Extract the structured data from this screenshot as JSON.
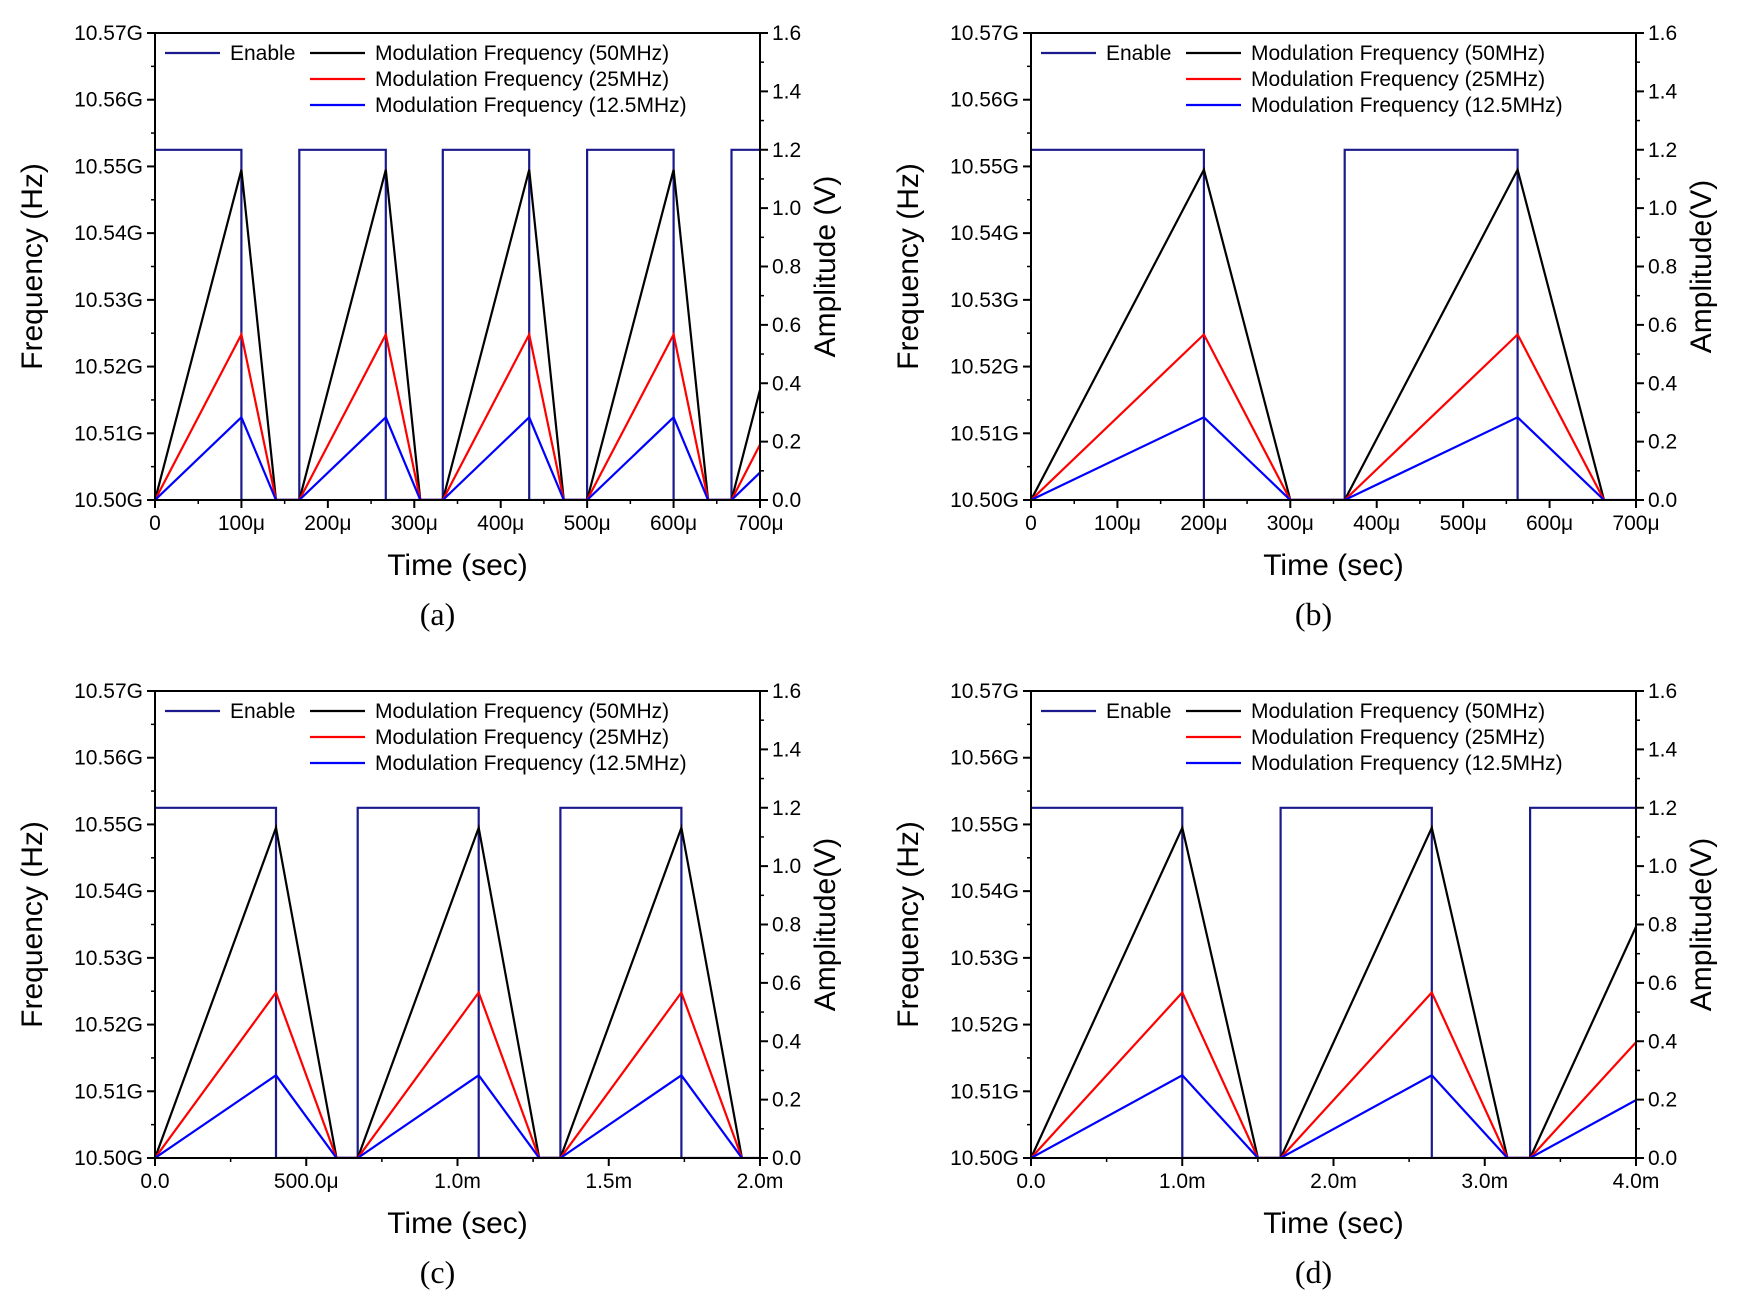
{
  "colors": {
    "enable": "#1a1a8c",
    "f50": "#000000",
    "f25": "#ff0000",
    "f12": "#0000ff"
  },
  "chart_data": [
    {
      "type": "line",
      "caption": "(a)",
      "xlabel": "Time (sec)",
      "ylabel_left": "Frequency (Hz)",
      "ylabel_right": "Amplitude (V)",
      "xlim": [
        0,
        0.0007
      ],
      "xticks": [
        0,
        0.0001,
        0.0002,
        0.0003,
        0.0004,
        0.0005,
        0.0006,
        0.0007
      ],
      "xtick_labels": [
        "0",
        "100μ",
        "200μ",
        "300μ",
        "400μ",
        "500μ",
        "600μ",
        "700μ"
      ],
      "ylim_left": [
        10500000000,
        10570000000
      ],
      "yticks_left_labels": [
        "10.50G",
        "10.51G",
        "10.52G",
        "10.53G",
        "10.54G",
        "10.55G",
        "10.56G",
        "10.57G"
      ],
      "ylim_right": [
        0,
        1.6
      ],
      "yticks_right_labels": [
        "0.0",
        "0.2",
        "0.4",
        "0.6",
        "0.8",
        "1.0",
        "1.2",
        "1.4",
        "1.6"
      ],
      "legend": {
        "enable": "Enable",
        "f50": "Modulation Frequency (50MHz)",
        "f25": "Modulation Frequency (25MHz)",
        "f12": "Modulation Frequency (12.5MHz)"
      },
      "series": [
        {
          "name": "Enable",
          "color_key": "enable",
          "axis": "right",
          "x": [
            0,
            0.0001,
            0.0001,
            0.000167,
            0.000167,
            0.000267,
            0.000267,
            0.000333,
            0.000333,
            0.000433,
            0.000433,
            0.0005,
            0.0005,
            0.0006,
            0.0006,
            0.000667,
            0.000667,
            0.0007
          ],
          "y": [
            1.2,
            1.2,
            0,
            0,
            1.2,
            1.2,
            0,
            0,
            1.2,
            1.2,
            0,
            0,
            1.2,
            1.2,
            0,
            0,
            1.2,
            1.2
          ]
        },
        {
          "name": "Modulation Frequency (50MHz)",
          "color_key": "f50",
          "axis": "left",
          "x": [
            0,
            0.0001,
            0.00014,
            0.000167,
            0.000267,
            0.000307,
            0.000333,
            0.000433,
            0.000473,
            0.0005,
            0.0006,
            0.00064,
            0.000667,
            0.0007
          ],
          "y": [
            10500000000,
            10549500000,
            10500000000,
            10500000000,
            10549500000,
            10500000000,
            10500000000,
            10549500000,
            10500000000,
            10500000000,
            10549500000,
            10500000000,
            10500000000,
            10516500000
          ]
        },
        {
          "name": "Modulation Frequency (25MHz)",
          "color_key": "f25",
          "axis": "left",
          "x": [
            0,
            0.0001,
            0.00014,
            0.000167,
            0.000267,
            0.000307,
            0.000333,
            0.000433,
            0.000473,
            0.0005,
            0.0006,
            0.00064,
            0.000667,
            0.0007
          ],
          "y": [
            10500000000,
            10524800000,
            10500000000,
            10500000000,
            10524800000,
            10500000000,
            10500000000,
            10524800000,
            10500000000,
            10500000000,
            10524800000,
            10500000000,
            10500000000,
            10508300000
          ]
        },
        {
          "name": "Modulation Frequency (12.5MHz)",
          "color_key": "f12",
          "axis": "left",
          "x": [
            0,
            0.0001,
            0.00014,
            0.000167,
            0.000267,
            0.000307,
            0.000333,
            0.000433,
            0.000473,
            0.0005,
            0.0006,
            0.00064,
            0.000667,
            0.0007
          ],
          "y": [
            10500000000,
            10512400000,
            10500000000,
            10500000000,
            10512400000,
            10500000000,
            10500000000,
            10512400000,
            10500000000,
            10500000000,
            10512400000,
            10500000000,
            10500000000,
            10504100000
          ]
        }
      ]
    },
    {
      "type": "line",
      "caption": "(b)",
      "xlabel": "Time (sec)",
      "ylabel_left": "Frequency (Hz)",
      "ylabel_right": "Amplitude(V)",
      "xlim": [
        0,
        0.0007
      ],
      "xticks": [
        0,
        0.0001,
        0.0002,
        0.0003,
        0.0004,
        0.0005,
        0.0006,
        0.0007
      ],
      "xtick_labels": [
        "0",
        "100μ",
        "200μ",
        "300μ",
        "400μ",
        "500μ",
        "600μ",
        "700μ"
      ],
      "ylim_left": [
        10500000000,
        10570000000
      ],
      "yticks_left_labels": [
        "10.50G",
        "10.51G",
        "10.52G",
        "10.53G",
        "10.54G",
        "10.55G",
        "10.56G",
        "10.57G"
      ],
      "ylim_right": [
        0,
        1.6
      ],
      "yticks_right_labels": [
        "0.0",
        "0.2",
        "0.4",
        "0.6",
        "0.8",
        "1.0",
        "1.2",
        "1.4",
        "1.6"
      ],
      "legend": {
        "enable": "Enable",
        "f50": "Modulation Frequency (50MHz)",
        "f25": "Modulation Frequency (25MHz)",
        "f12": "Modulation Frequency (12.5MHz)"
      },
      "series": [
        {
          "name": "Enable",
          "color_key": "enable",
          "axis": "right",
          "x": [
            0,
            0.0002,
            0.0002,
            0.000363,
            0.000363,
            0.000563,
            0.000563,
            0.0007
          ],
          "y": [
            1.2,
            1.2,
            0,
            0,
            1.2,
            1.2,
            0,
            0
          ]
        },
        {
          "name": "Modulation Frequency (50MHz)",
          "color_key": "f50",
          "axis": "left",
          "x": [
            0,
            0.0002,
            0.0003,
            0.000363,
            0.000563,
            0.000663
          ],
          "y": [
            10500000000,
            10549500000,
            10500000000,
            10500000000,
            10549500000,
            10500000000
          ]
        },
        {
          "name": "Modulation Frequency (25MHz)",
          "color_key": "f25",
          "axis": "left",
          "x": [
            0,
            0.0002,
            0.0003,
            0.000363,
            0.000563,
            0.000663
          ],
          "y": [
            10500000000,
            10524800000,
            10500000000,
            10500000000,
            10524800000,
            10500000000
          ]
        },
        {
          "name": "Modulation Frequency (12.5MHz)",
          "color_key": "f12",
          "axis": "left",
          "x": [
            0,
            0.0002,
            0.0003,
            0.000363,
            0.000563,
            0.000663
          ],
          "y": [
            10500000000,
            10512400000,
            10500000000,
            10500000000,
            10512400000,
            10500000000
          ]
        }
      ]
    },
    {
      "type": "line",
      "caption": "(c)",
      "xlabel": "Time (sec)",
      "ylabel_left": "Frequency (Hz)",
      "ylabel_right": "Amplitude(V)",
      "xlim": [
        0,
        0.002
      ],
      "xticks": [
        0,
        0.0005,
        0.001,
        0.0015,
        0.002
      ],
      "xtick_labels": [
        "0.0",
        "500.0μ",
        "1.0m",
        "1.5m",
        "2.0m"
      ],
      "ylim_left": [
        10500000000,
        10570000000
      ],
      "yticks_left_labels": [
        "10.50G",
        "10.51G",
        "10.52G",
        "10.53G",
        "10.54G",
        "10.55G",
        "10.56G",
        "10.57G"
      ],
      "ylim_right": [
        0,
        1.6
      ],
      "yticks_right_labels": [
        "0.0",
        "0.2",
        "0.4",
        "0.6",
        "0.8",
        "1.0",
        "1.2",
        "1.4",
        "1.6"
      ],
      "legend": {
        "enable": "Enable",
        "f50": "Modulation Frequency (50MHz)",
        "f25": "Modulation Frequency (25MHz)",
        "f12": "Modulation Frequency (12.5MHz)"
      },
      "series": [
        {
          "name": "Enable",
          "color_key": "enable",
          "axis": "right",
          "x": [
            0,
            0.0004,
            0.0004,
            0.00067,
            0.00067,
            0.00107,
            0.00107,
            0.00134,
            0.00134,
            0.00174,
            0.00174,
            0.002
          ],
          "y": [
            1.2,
            1.2,
            0,
            0,
            1.2,
            1.2,
            0,
            0,
            1.2,
            1.2,
            0,
            0
          ]
        },
        {
          "name": "Modulation Frequency (50MHz)",
          "color_key": "f50",
          "axis": "left",
          "x": [
            0,
            0.0004,
            0.0006,
            0.00067,
            0.00107,
            0.00127,
            0.00134,
            0.00174,
            0.00194
          ],
          "y": [
            10500000000,
            10549500000,
            10500000000,
            10500000000,
            10549500000,
            10500000000,
            10500000000,
            10549500000,
            10500000000
          ]
        },
        {
          "name": "Modulation Frequency (25MHz)",
          "color_key": "f25",
          "axis": "left",
          "x": [
            0,
            0.0004,
            0.0006,
            0.00067,
            0.00107,
            0.00127,
            0.00134,
            0.00174,
            0.00194
          ],
          "y": [
            10500000000,
            10524800000,
            10500000000,
            10500000000,
            10524800000,
            10500000000,
            10500000000,
            10524800000,
            10500000000
          ]
        },
        {
          "name": "Modulation Frequency (12.5MHz)",
          "color_key": "f12",
          "axis": "left",
          "x": [
            0,
            0.0004,
            0.0006,
            0.00067,
            0.00107,
            0.00127,
            0.00134,
            0.00174,
            0.00194
          ],
          "y": [
            10500000000,
            10512400000,
            10500000000,
            10500000000,
            10512400000,
            10500000000,
            10500000000,
            10512400000,
            10500000000
          ]
        }
      ]
    },
    {
      "type": "line",
      "caption": "(d)",
      "xlabel": "Time (sec)",
      "ylabel_left": "Frequency (Hz)",
      "ylabel_right": "Amplitude(V)",
      "xlim": [
        0,
        0.004
      ],
      "xticks": [
        0,
        0.001,
        0.002,
        0.003,
        0.004
      ],
      "xtick_labels": [
        "0.0",
        "1.0m",
        "2.0m",
        "3.0m",
        "4.0m"
      ],
      "ylim_left": [
        10500000000,
        10570000000
      ],
      "yticks_left_labels": [
        "10.50G",
        "10.51G",
        "10.52G",
        "10.53G",
        "10.54G",
        "10.55G",
        "10.56G",
        "10.57G"
      ],
      "ylim_right": [
        0,
        1.6
      ],
      "yticks_right_labels": [
        "0.0",
        "0.2",
        "0.4",
        "0.6",
        "0.8",
        "1.0",
        "1.2",
        "1.4",
        "1.6"
      ],
      "legend": {
        "enable": "Enable",
        "f50": "Modulation Frequency (50MHz)",
        "f25": "Modulation Frequency (25MHz)",
        "f12": "Modulation Frequency (12.5MHz)"
      },
      "series": [
        {
          "name": "Enable",
          "color_key": "enable",
          "axis": "right",
          "x": [
            0,
            0.001,
            0.001,
            0.00165,
            0.00165,
            0.00265,
            0.00265,
            0.0033,
            0.0033,
            0.004
          ],
          "y": [
            1.2,
            1.2,
            0,
            0,
            1.2,
            1.2,
            0,
            0,
            1.2,
            1.2
          ]
        },
        {
          "name": "Modulation Frequency (50MHz)",
          "color_key": "f50",
          "axis": "left",
          "x": [
            0,
            0.001,
            0.0015,
            0.00165,
            0.00265,
            0.00315,
            0.0033,
            0.004
          ],
          "y": [
            10500000000,
            10549500000,
            10500000000,
            10500000000,
            10549500000,
            10500000000,
            10500000000,
            10534650000
          ]
        },
        {
          "name": "Modulation Frequency (25MHz)",
          "color_key": "f25",
          "axis": "left",
          "x": [
            0,
            0.001,
            0.0015,
            0.00165,
            0.00265,
            0.00315,
            0.0033,
            0.004
          ],
          "y": [
            10500000000,
            10524800000,
            10500000000,
            10500000000,
            10524800000,
            10500000000,
            10500000000,
            10517360000
          ]
        },
        {
          "name": "Modulation Frequency (12.5MHz)",
          "color_key": "f12",
          "axis": "left",
          "x": [
            0,
            0.001,
            0.0015,
            0.00165,
            0.00265,
            0.00315,
            0.0033,
            0.004
          ],
          "y": [
            10500000000,
            10512400000,
            10500000000,
            10500000000,
            10512400000,
            10500000000,
            10500000000,
            10508680000
          ]
        }
      ]
    }
  ]
}
